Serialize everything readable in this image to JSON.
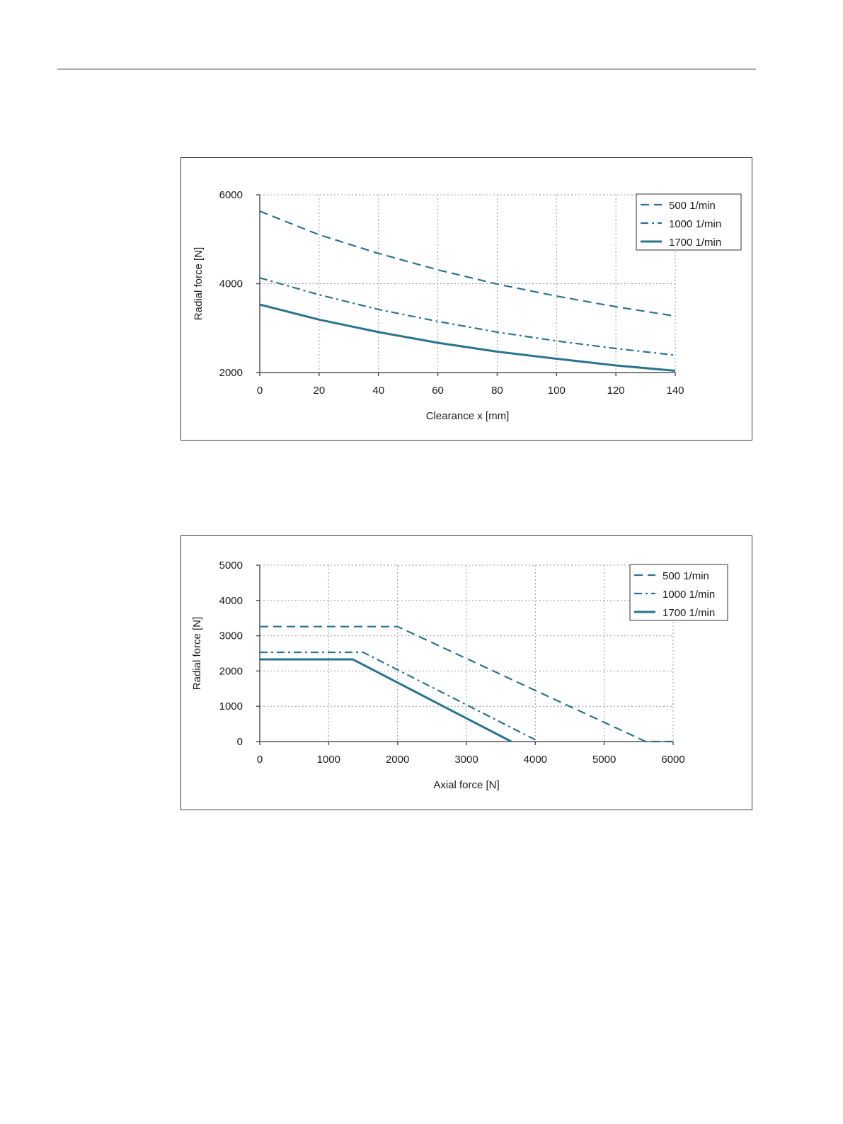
{
  "chart_data": [
    {
      "type": "line",
      "title": "",
      "xlabel": "Clearance x [mm]",
      "ylabel": "Radial force [N]",
      "xlim": [
        0,
        140
      ],
      "ylim": [
        2000,
        6000
      ],
      "xticks": [
        0,
        20,
        40,
        60,
        80,
        100,
        120,
        140
      ],
      "yticks": [
        2000,
        4000,
        6000
      ],
      "grid": true,
      "legend_position": "top-right",
      "x": [
        0,
        20,
        40,
        60,
        80,
        100,
        120,
        140
      ],
      "series": [
        {
          "name": "500  1/min",
          "style": "dashed",
          "values": [
            5630,
            5100,
            4680,
            4310,
            3990,
            3720,
            3480,
            3270
          ]
        },
        {
          "name": "1000 1/min",
          "style": "dash-dot",
          "values": [
            4130,
            3750,
            3420,
            3150,
            2910,
            2710,
            2540,
            2390
          ]
        },
        {
          "name": "1700 1/min",
          "style": "solid",
          "values": [
            3530,
            3190,
            2910,
            2670,
            2470,
            2310,
            2160,
            2040
          ]
        }
      ]
    },
    {
      "type": "line",
      "title": "",
      "xlabel": "Axial force [N]",
      "ylabel": "Radial force [N]",
      "xlim": [
        0,
        6000
      ],
      "ylim": [
        0,
        5000
      ],
      "xticks": [
        0,
        1000,
        2000,
        3000,
        4000,
        5000,
        6000
      ],
      "yticks": [
        0,
        1000,
        2000,
        3000,
        4000,
        5000
      ],
      "grid": true,
      "legend_position": "top-right",
      "series": [
        {
          "name": "500  1/min",
          "style": "dashed",
          "x": [
            0,
            2000,
            5600,
            6000
          ],
          "values": [
            3260,
            3260,
            0,
            0
          ]
        },
        {
          "name": "1000 1/min",
          "style": "dash-dot",
          "x": [
            0,
            1500,
            4050
          ],
          "values": [
            2530,
            2530,
            0
          ]
        },
        {
          "name": "1700 1/min",
          "style": "solid",
          "x": [
            0,
            1350,
            3650
          ],
          "values": [
            2330,
            2330,
            0
          ]
        }
      ]
    }
  ],
  "colors": {
    "line": "#2a7390",
    "axis": "#555555",
    "grid": "#9a9a9a"
  }
}
